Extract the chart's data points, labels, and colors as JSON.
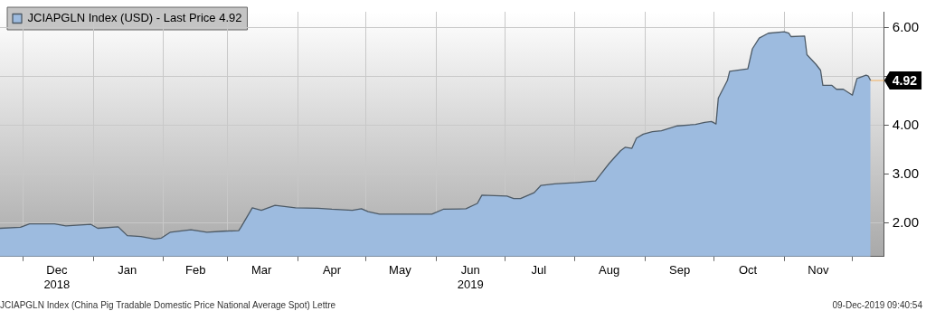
{
  "chart_data": {
    "type": "area",
    "series": [
      {
        "name": "JCIAPGLN Index (USD) - Last Price 4.92",
        "color": "#9dbbdf",
        "x": [
          "2018-11-21",
          "2018-11-30",
          "2018-12-04",
          "2018-12-15",
          "2018-12-20",
          "2018-12-31",
          "2019-01-03",
          "2019-01-12",
          "2019-01-16",
          "2019-01-22",
          "2019-01-28",
          "2019-01-31",
          "2019-02-04",
          "2019-02-13",
          "2019-02-20",
          "2019-02-27",
          "2019-03-06",
          "2019-03-07",
          "2019-03-12",
          "2019-03-16",
          "2019-03-22",
          "2019-03-31",
          "2019-04-10",
          "2019-04-16",
          "2019-04-25",
          "2019-04-29",
          "2019-05-02",
          "2019-05-07",
          "2019-05-30",
          "2019-06-04",
          "2019-06-14",
          "2019-06-19",
          "2019-06-21",
          "2019-07-02",
          "2019-07-05",
          "2019-07-08",
          "2019-07-14",
          "2019-07-17",
          "2019-07-23",
          "2019-08-02",
          "2019-08-10",
          "2019-08-12",
          "2019-08-16",
          "2019-08-21",
          "2019-08-23",
          "2019-08-26",
          "2019-08-28",
          "2019-08-31",
          "2019-09-04",
          "2019-09-08",
          "2019-09-15",
          "2019-09-23",
          "2019-09-27",
          "2019-09-30",
          "2019-10-02",
          "2019-10-03",
          "2019-10-07",
          "2019-10-08",
          "2019-10-16",
          "2019-10-18",
          "2019-10-21",
          "2019-10-25",
          "2019-11-01",
          "2019-11-03",
          "2019-11-04",
          "2019-11-10",
          "2019-11-11",
          "2019-11-15",
          "2019-11-17",
          "2019-11-18",
          "2019-11-22",
          "2019-11-24",
          "2019-11-27",
          "2019-12-01",
          "2019-12-03",
          "2019-12-07",
          "2019-12-08",
          "2019-12-09"
        ],
        "values": [
          1.89,
          1.91,
          1.98,
          1.98,
          1.94,
          1.97,
          1.89,
          1.92,
          1.74,
          1.72,
          1.67,
          1.69,
          1.81,
          1.86,
          1.81,
          1.83,
          1.84,
          1.91,
          2.31,
          2.26,
          2.36,
          2.31,
          2.3,
          2.28,
          2.26,
          2.29,
          2.23,
          2.18,
          2.18,
          2.28,
          2.29,
          2.4,
          2.57,
          2.55,
          2.5,
          2.5,
          2.62,
          2.77,
          2.8,
          2.83,
          2.86,
          2.98,
          3.22,
          3.48,
          3.55,
          3.53,
          3.74,
          3.82,
          3.87,
          3.89,
          3.99,
          4.02,
          4.06,
          4.08,
          4.03,
          4.56,
          4.92,
          5.11,
          5.16,
          5.57,
          5.79,
          5.89,
          5.92,
          5.89,
          5.82,
          5.83,
          5.45,
          5.25,
          5.13,
          4.82,
          4.82,
          4.74,
          4.74,
          4.62,
          4.96,
          5.03,
          5.01,
          4.92
        ]
      }
    ],
    "xlim": [
      "2018-11-21",
      "2019-12-15"
    ],
    "xticks": [
      {
        "value": "2018-12-01",
        "label": null
      },
      {
        "value": "2018-12-16",
        "label": "Dec\n2018"
      },
      {
        "value": "2019-01-01",
        "label": null
      },
      {
        "value": "2019-01-16",
        "label": "Jan"
      },
      {
        "value": "2019-02-01",
        "label": null
      },
      {
        "value": "2019-02-15",
        "label": "Feb"
      },
      {
        "value": "2019-03-01",
        "label": null
      },
      {
        "value": "2019-03-16",
        "label": "Mar"
      },
      {
        "value": "2019-04-01",
        "label": null
      },
      {
        "value": "2019-04-16",
        "label": "Apr"
      },
      {
        "value": "2019-05-01",
        "label": null
      },
      {
        "value": "2019-05-16",
        "label": "May"
      },
      {
        "value": "2019-06-01",
        "label": null
      },
      {
        "value": "2019-06-16",
        "label": "Jun\n2019"
      },
      {
        "value": "2019-07-01",
        "label": null
      },
      {
        "value": "2019-07-16",
        "label": "Jul"
      },
      {
        "value": "2019-08-01",
        "label": null
      },
      {
        "value": "2019-08-16",
        "label": "Aug"
      },
      {
        "value": "2019-09-01",
        "label": null
      },
      {
        "value": "2019-09-16",
        "label": "Sep"
      },
      {
        "value": "2019-10-01",
        "label": null
      },
      {
        "value": "2019-10-16",
        "label": "Oct"
      },
      {
        "value": "2019-11-01",
        "label": null
      },
      {
        "value": "2019-11-16",
        "label": "Nov"
      },
      {
        "value": "2019-12-01",
        "label": null
      }
    ],
    "ylim": [
      1.31,
      6.33
    ],
    "yticks": [
      {
        "value": 2,
        "label": "2.00"
      },
      {
        "value": 3,
        "label": "3.00"
      },
      {
        "value": 4,
        "label": "4.00"
      },
      {
        "value": 5,
        "label": null
      },
      {
        "value": 6,
        "label": "6.00"
      }
    ],
    "ref_lines": [
      {
        "axis": "y",
        "value": 4.92,
        "label": "4.92",
        "color": "#f0b060"
      }
    ],
    "annotations": [
      "JCIAPGLN Index (China Pig Tradable Domestic Price National Average Spot) Lettre",
      "09-Dec-2019 09:40:54"
    ],
    "grid": true,
    "legend": "top left"
  }
}
